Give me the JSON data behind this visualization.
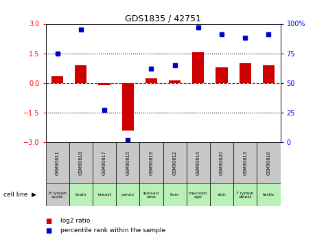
{
  "title": "GDS1835 / 42751",
  "samples": [
    "GSM90611",
    "GSM90618",
    "GSM90617",
    "GSM90615",
    "GSM90619",
    "GSM90612",
    "GSM90614",
    "GSM90620",
    "GSM90613",
    "GSM90616"
  ],
  "cell_lines": [
    "B lymph\nocyte",
    "brain",
    "breast",
    "cervix",
    "liposarc\noma",
    "liver",
    "macroph\nage",
    "skin",
    "T lymph\noblast",
    "testis"
  ],
  "cell_colors": [
    "#c8c8c8",
    "#b8f0b8",
    "#b8f0b8",
    "#b8f0b8",
    "#b8f0b8",
    "#b8f0b8",
    "#b8f0b8",
    "#b8f0b8",
    "#b8f0b8",
    "#b8f0b8"
  ],
  "gsm_color": "#c8c8c8",
  "log2_ratio": [
    0.35,
    0.9,
    -0.1,
    -2.4,
    0.25,
    0.12,
    1.55,
    0.8,
    1.0,
    0.9
  ],
  "percentile_rank": [
    75,
    95,
    27,
    2,
    62,
    65,
    97,
    91,
    88,
    91
  ],
  "ylim": [
    -3,
    3
  ],
  "yticks_left": [
    -3,
    -1.5,
    0,
    1.5,
    3
  ],
  "yticks_right": [
    0,
    25,
    50,
    75,
    100
  ],
  "bar_color": "#cc0000",
  "dot_color": "#0000cc",
  "hline_color": "#cc0000",
  "dotline_color": "black",
  "legend_bar_label": "log2 ratio",
  "legend_dot_label": "percentile rank within the sample",
  "cell_line_label": "cell line",
  "bar_width": 0.5
}
